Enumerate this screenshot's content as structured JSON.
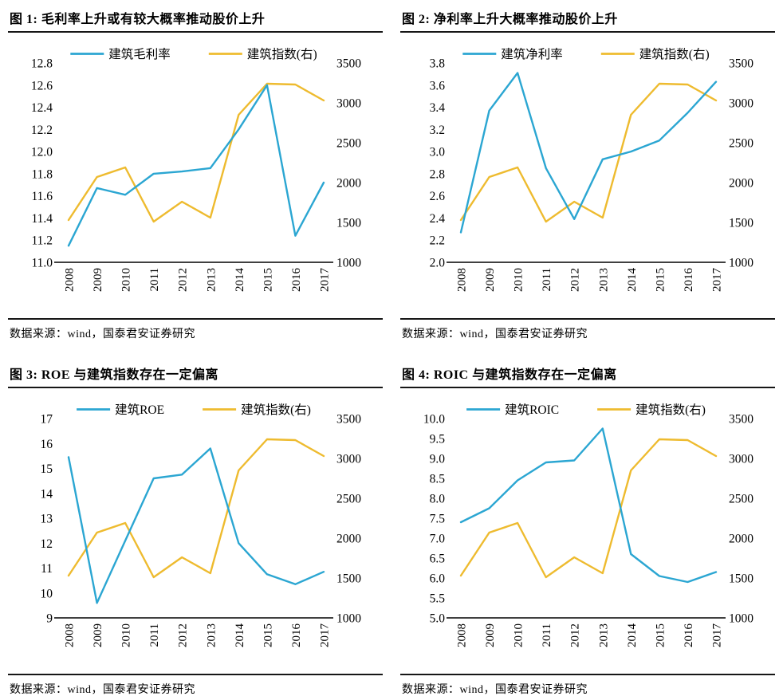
{
  "page": {
    "background": "#ffffff",
    "accent_blue": "#2BA6D2",
    "accent_yellow": "#EEBB2F"
  },
  "chart_data": [
    {
      "id": "figure-1",
      "type": "line",
      "title": "图 1: 毛利率上升或有较大概率推动股价上升",
      "source_note": "数据来源：wind，国泰君安证券研究",
      "legend_position": "top",
      "grid": false,
      "x": [
        "2008",
        "2009",
        "2010",
        "2011",
        "2012",
        "2013",
        "2014",
        "2015",
        "2016",
        "2017"
      ],
      "series": [
        {
          "name": "建筑毛利率",
          "axis": "left",
          "color": "#2BA6D2",
          "values": [
            11.15,
            11.67,
            11.61,
            11.8,
            11.82,
            11.85,
            12.2,
            12.6,
            11.24,
            11.72
          ]
        },
        {
          "name": "建筑指数(右)",
          "axis": "right",
          "color": "#EEBB2F",
          "values": [
            1530,
            2070,
            2190,
            1510,
            1760,
            1560,
            2850,
            3240,
            3230,
            3030
          ]
        }
      ],
      "left_axis": {
        "min": 11.0,
        "max": 12.8,
        "step": 0.2,
        "decimals": 1
      },
      "right_axis": {
        "min": 1000,
        "max": 3500,
        "step": 500,
        "decimals": 0
      }
    },
    {
      "id": "figure-2",
      "type": "line",
      "title": "图 2: 净利率上升大概率推动股价上升",
      "source_note": "数据来源：wind，国泰君安证券研究",
      "legend_position": "top",
      "grid": false,
      "x": [
        "2008",
        "2009",
        "2010",
        "2011",
        "2012",
        "2013",
        "2014",
        "2015",
        "2016",
        "2017"
      ],
      "series": [
        {
          "name": "建筑净利率",
          "axis": "left",
          "color": "#2BA6D2",
          "values": [
            2.27,
            3.37,
            3.71,
            2.85,
            2.39,
            2.93,
            3.0,
            3.1,
            3.35,
            3.63
          ]
        },
        {
          "name": "建筑指数(右)",
          "axis": "right",
          "color": "#EEBB2F",
          "values": [
            1530,
            2070,
            2190,
            1510,
            1760,
            1560,
            2850,
            3240,
            3230,
            3030
          ]
        }
      ],
      "left_axis": {
        "min": 2.0,
        "max": 3.8,
        "step": 0.2,
        "decimals": 1
      },
      "right_axis": {
        "min": 1000,
        "max": 3500,
        "step": 500,
        "decimals": 0
      }
    },
    {
      "id": "figure-3",
      "type": "line",
      "title": "图 3: ROE 与建筑指数存在一定偏离",
      "source_note": "数据来源：wind，国泰君安证券研究",
      "legend_position": "top",
      "grid": false,
      "x": [
        "2008",
        "2009",
        "2010",
        "2011",
        "2012",
        "2013",
        "2014",
        "2015",
        "2016",
        "2017"
      ],
      "series": [
        {
          "name": "建筑ROE",
          "axis": "left",
          "color": "#2BA6D2",
          "values": [
            15.45,
            9.6,
            12.1,
            14.6,
            14.75,
            15.8,
            12.0,
            10.75,
            10.35,
            10.85
          ]
        },
        {
          "name": "建筑指数(右)",
          "axis": "right",
          "color": "#EEBB2F",
          "values": [
            1530,
            2070,
            2190,
            1510,
            1760,
            1560,
            2850,
            3240,
            3230,
            3030
          ]
        }
      ],
      "left_axis": {
        "min": 9,
        "max": 17,
        "step": 1,
        "decimals": 0
      },
      "right_axis": {
        "min": 1000,
        "max": 3500,
        "step": 500,
        "decimals": 0
      }
    },
    {
      "id": "figure-4",
      "type": "line",
      "title": "图 4: ROIC 与建筑指数存在一定偏离",
      "source_note": "数据来源：wind，国泰君安证券研究",
      "legend_position": "top",
      "grid": false,
      "x": [
        "2008",
        "2009",
        "2010",
        "2011",
        "2012",
        "2013",
        "2014",
        "2015",
        "2016",
        "2017"
      ],
      "series": [
        {
          "name": "建筑ROIC",
          "axis": "left",
          "color": "#2BA6D2",
          "values": [
            7.4,
            7.75,
            8.45,
            8.9,
            8.95,
            9.75,
            6.6,
            6.05,
            5.9,
            6.15
          ]
        },
        {
          "name": "建筑指数(右)",
          "axis": "right",
          "color": "#EEBB2F",
          "values": [
            1530,
            2070,
            2190,
            1510,
            1760,
            1560,
            2850,
            3240,
            3230,
            3030
          ]
        }
      ],
      "left_axis": {
        "min": 5.0,
        "max": 10.0,
        "step": 0.5,
        "decimals": 1
      },
      "right_axis": {
        "min": 1000,
        "max": 3500,
        "step": 500,
        "decimals": 0
      }
    }
  ]
}
